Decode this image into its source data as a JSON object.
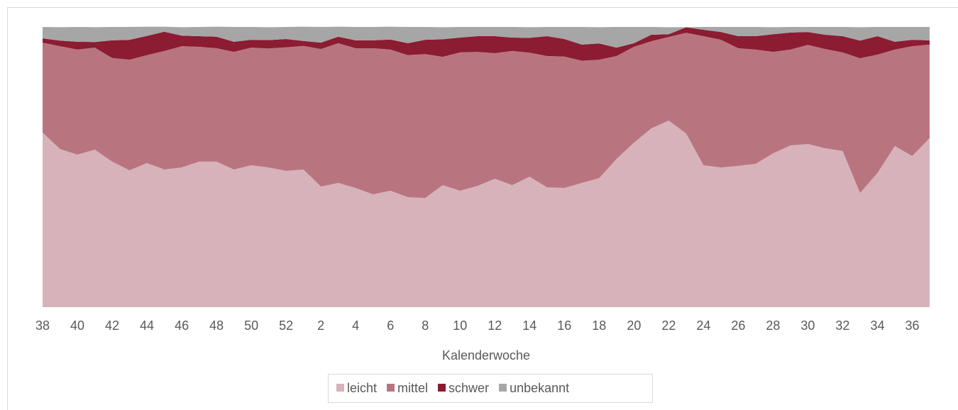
{
  "chart_data": {
    "type": "area",
    "stacked": true,
    "xlabel": "Kalenderwoche",
    "categories": [
      "38",
      null,
      "40",
      null,
      "42",
      null,
      "44",
      null,
      "46",
      null,
      "48",
      null,
      "50",
      null,
      "52",
      null,
      "2",
      null,
      "4",
      null,
      "6",
      null,
      "8",
      null,
      "10",
      null,
      "12",
      null,
      "14",
      null,
      "16",
      null,
      "18",
      null,
      "20",
      null,
      "22",
      null,
      "24",
      null,
      "26",
      null,
      "28",
      null,
      "30",
      null,
      "32",
      null,
      "34",
      null,
      "36",
      null
    ],
    "ylim": [
      0,
      100
    ],
    "legend": "bottom",
    "series": [
      {
        "name": "leicht",
        "color": "#d8b2ba",
        "values": [
          62.2,
          56.3,
          54.3,
          56.1,
          51.8,
          48.7,
          51.3,
          49.0,
          49.7,
          51.8,
          51.8,
          49.0,
          50.5,
          49.7,
          48.5,
          49.0,
          42.9,
          44.2,
          42.4,
          40.1,
          41.4,
          39.1,
          38.8,
          43.4,
          41.4,
          43.1,
          45.7,
          43.4,
          46.4,
          42.6,
          42.4,
          44.2,
          45.9,
          52.8,
          58.6,
          63.7,
          66.5,
          61.9,
          50.5,
          49.7,
          50.3,
          51.0,
          54.8,
          57.6,
          58.1,
          56.6,
          55.6,
          40.6,
          47.7,
          57.4,
          53.8,
          60.2
        ]
      },
      {
        "name": "mittel",
        "color": "#b87580",
        "values": [
          32.2,
          36.8,
          37.6,
          36.5,
          37.1,
          39.6,
          38.6,
          42.4,
          43.4,
          41.1,
          40.6,
          42.1,
          42.1,
          42.6,
          44.2,
          44.2,
          49.2,
          50.0,
          50.0,
          52.3,
          50.5,
          50.8,
          51.5,
          45.9,
          49.5,
          48.0,
          44.9,
          48.0,
          44.4,
          47.0,
          47.0,
          43.7,
          42.4,
          36.8,
          34.3,
          31.2,
          29.9,
          36.0,
          46.2,
          45.7,
          42.1,
          40.9,
          36.3,
          34.3,
          35.5,
          35.5,
          35.3,
          48.2,
          42.4,
          34.5,
          39.3,
          33.5
        ]
      },
      {
        "name": "schwer",
        "color": "#8b1c32",
        "values": [
          1.5,
          2.0,
          2.8,
          2.0,
          6.3,
          7.1,
          6.9,
          6.9,
          3.8,
          3.8,
          4.1,
          3.6,
          2.8,
          3.0,
          3.0,
          1.8,
          2.3,
          2.3,
          2.8,
          2.8,
          3.6,
          4.3,
          5.1,
          6.3,
          5.3,
          5.6,
          6.1,
          4.8,
          5.3,
          7.1,
          6.3,
          5.8,
          5.8,
          3.0,
          1.3,
          2.3,
          1.0,
          2.0,
          2.3,
          2.8,
          4.3,
          4.8,
          6.3,
          6.1,
          4.6,
          5.1,
          5.8,
          6.3,
          6.6,
          2.8,
          2.3,
          1.5
        ]
      },
      {
        "name": "unbekannt",
        "color": "#a6a6a6",
        "values": [
          4.1,
          4.8,
          5.3,
          5.3,
          4.8,
          4.6,
          3.3,
          1.8,
          3.0,
          3.3,
          3.6,
          5.3,
          4.6,
          4.6,
          4.3,
          5.1,
          5.6,
          3.6,
          4.8,
          4.8,
          4.6,
          5.8,
          4.6,
          4.3,
          3.8,
          3.3,
          3.3,
          3.8,
          3.8,
          3.3,
          4.3,
          6.3,
          5.8,
          7.4,
          5.8,
          2.8,
          2.5,
          0,
          1.0,
          1.8,
          3.3,
          3.3,
          2.5,
          2.0,
          1.8,
          2.8,
          3.3,
          4.8,
          3.3,
          5.3,
          4.6,
          4.8
        ]
      }
    ]
  }
}
